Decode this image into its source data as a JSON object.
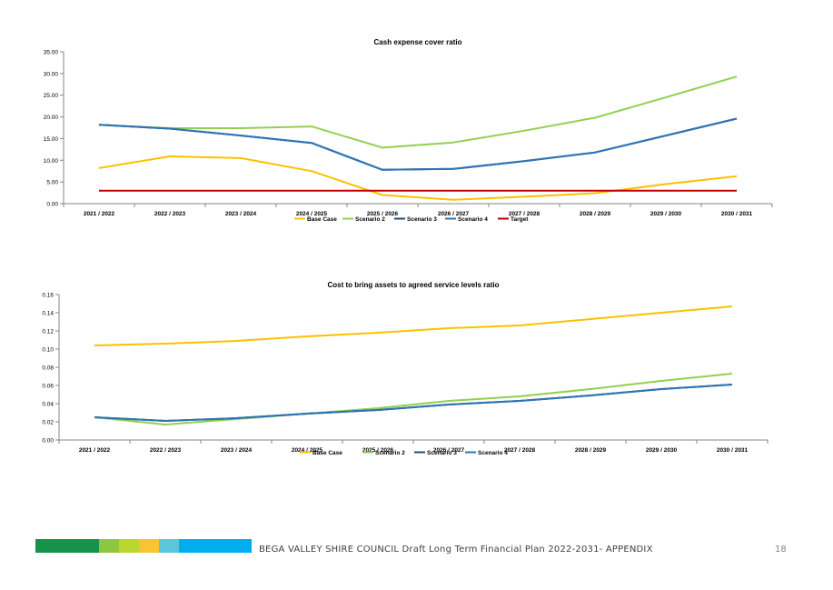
{
  "chart_data": [
    {
      "type": "line",
      "title": "Cash expense cover ratio",
      "xlabel": "",
      "ylabel": "",
      "categories": [
        "2021 / 2022",
        "2022 / 2023",
        "2023 / 2024",
        "2024 / 2025",
        "2025 / 2026",
        "2026 / 2027",
        "2027 / 2028",
        "2028 / 2029",
        "2029 / 2030",
        "2030 / 2031"
      ],
      "ylim": [
        0,
        35
      ],
      "yticks": [
        "0.00",
        "5.00",
        "10.00",
        "15.00",
        "20.00",
        "25.00",
        "30.00",
        "35.00"
      ],
      "legend_position": "bottom",
      "grid": false,
      "series": [
        {
          "name": "Base Case",
          "color": "#FFC000",
          "values": [
            8.2,
            10.9,
            10.5,
            7.5,
            2.0,
            0.9,
            1.6,
            2.4,
            4.5,
            6.3
          ]
        },
        {
          "name": "Scenario 2",
          "color": "#92D050",
          "values": [
            18.2,
            17.4,
            17.4,
            17.8,
            12.9,
            14.1,
            16.8,
            19.8,
            24.5,
            29.3
          ]
        },
        {
          "name": "Scenario 3",
          "color": "#1F4E79",
          "values": [
            18.2,
            17.3,
            15.7,
            14.0,
            7.8,
            8.0,
            9.8,
            11.8,
            15.7,
            19.6
          ]
        },
        {
          "name": "Scenario 4",
          "color": "#2E75B6",
          "values": [
            18.2,
            17.3,
            15.7,
            14.0,
            7.8,
            8.0,
            9.8,
            11.8,
            15.7,
            19.6
          ]
        },
        {
          "name": "Target",
          "color": "#C00000",
          "values": [
            3,
            3,
            3,
            3,
            3,
            3,
            3,
            3,
            3,
            3
          ]
        }
      ]
    },
    {
      "type": "line",
      "title": "Cost to bring assets to agreed service levels ratio",
      "xlabel": "",
      "ylabel": "",
      "categories": [
        "2021 / 2022",
        "2022 / 2023",
        "2023 / 2024",
        "2024 / 2025",
        "2025 / 2026",
        "2026 / 2027",
        "2027 / 2028",
        "2028 / 2029",
        "2029 / 2030",
        "2030 / 2031"
      ],
      "ylim": [
        0,
        0.16
      ],
      "yticks": [
        "0.00",
        "0.02",
        "0.04",
        "0.06",
        "0.08",
        "0.10",
        "0.12",
        "0.14",
        "0.16"
      ],
      "legend_position": "bottom",
      "grid": false,
      "series": [
        {
          "name": "Base Case",
          "color": "#FFC000",
          "values": [
            0.104,
            0.106,
            0.109,
            0.114,
            0.118,
            0.123,
            0.126,
            0.133,
            0.14,
            0.147
          ]
        },
        {
          "name": "Scenario 2",
          "color": "#92D050",
          "values": [
            0.025,
            0.017,
            0.023,
            0.029,
            0.035,
            0.043,
            0.048,
            0.056,
            0.065,
            0.073
          ]
        },
        {
          "name": "Scenario 3",
          "color": "#1F4E79",
          "values": [
            0.025,
            0.021,
            0.024,
            0.029,
            0.033,
            0.039,
            0.043,
            0.049,
            0.056,
            0.061
          ]
        },
        {
          "name": "Scenario 4",
          "color": "#2E75B6",
          "values": [
            0.025,
            0.021,
            0.024,
            0.029,
            0.033,
            0.039,
            0.043,
            0.049,
            0.056,
            0.061
          ]
        }
      ]
    }
  ],
  "footer": {
    "text": "BEGA VALLEY SHIRE COUNCIL  Draft Long Term Financial Plan 2022-2031- APPENDIX",
    "page_number": "18",
    "brand_colors": [
      "#16924A",
      "#8DC63F",
      "#BCD631",
      "#F9C433",
      "#5BC5DC",
      "#00AEEF"
    ]
  }
}
